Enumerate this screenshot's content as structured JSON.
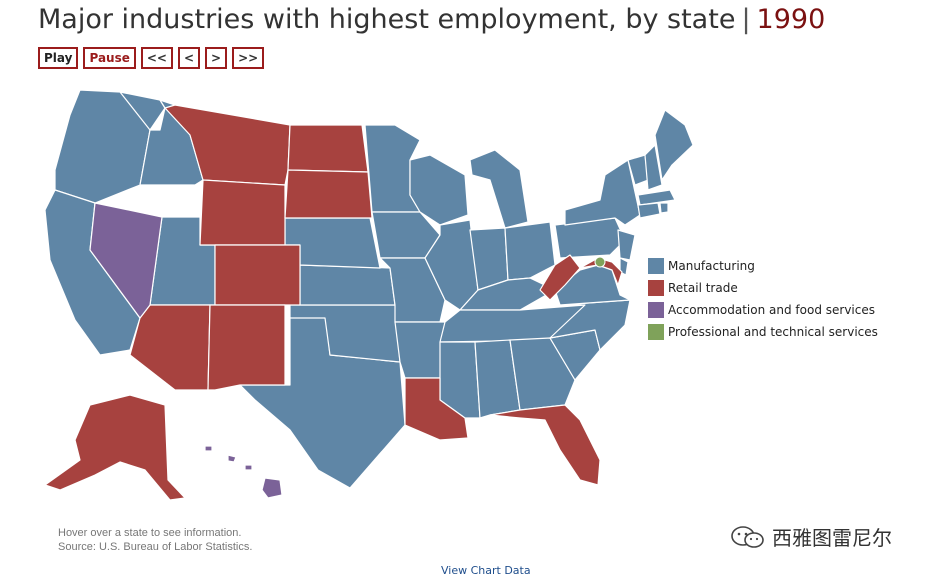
{
  "header": {
    "title": "Major industries with highest employment, by state",
    "separator": "|",
    "year": "1990"
  },
  "controls": [
    {
      "label": "Play"
    },
    {
      "label": "Pause"
    },
    {
      "label": "<<"
    },
    {
      "label": "<"
    },
    {
      "label": ">"
    },
    {
      "label": ">>"
    }
  ],
  "colors": {
    "manufacturing": "#5f86a6",
    "retail": "#a7423f",
    "accommodation": "#7b6298",
    "professional": "#7fa25a"
  },
  "legend": [
    {
      "label": "Manufacturing",
      "color": "#5f86a6"
    },
    {
      "label": "Retail trade",
      "color": "#a7423f"
    },
    {
      "label": "Accommodation and food services",
      "color": "#7b6298"
    },
    {
      "label": "Professional and technical services",
      "color": "#7fa25a"
    }
  ],
  "footnote": {
    "hover": "Hover over a state to see information.",
    "source": "Source: U.S. Bureau of Labor Statistics."
  },
  "view_chart_data": "View Chart Data",
  "watermark": "西雅图雷尼尔"
}
